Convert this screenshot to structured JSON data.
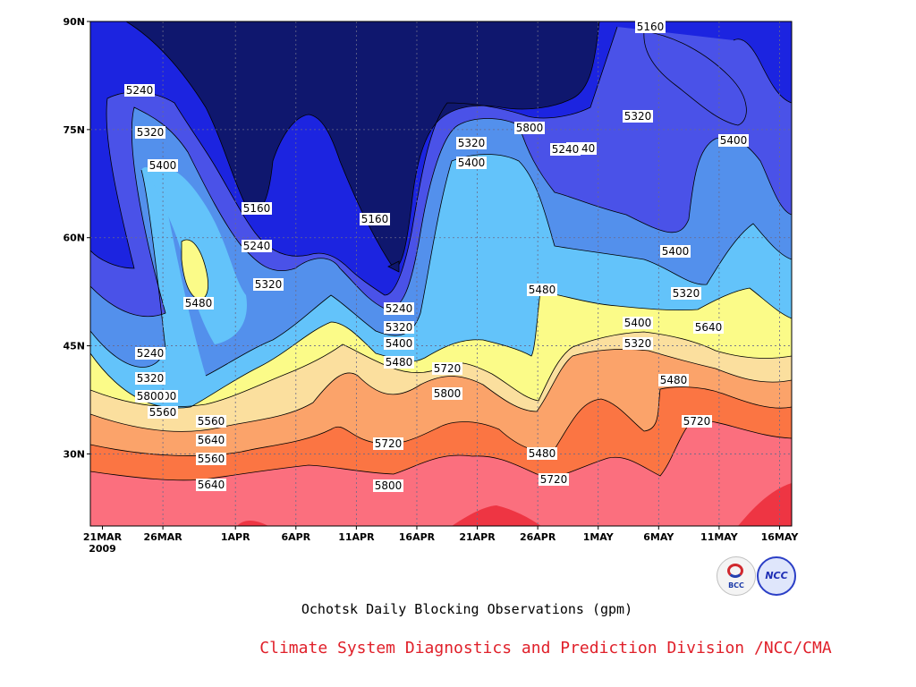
{
  "chart_data": {
    "type": "heatmap",
    "subtype": "filled-contour",
    "title": "Ochotsk Daily Blocking Observations (gpm)",
    "xlabel": "",
    "ylabel": "",
    "x_ticks": [
      "21MAR\n2009",
      "26MAR",
      "1APR",
      "6APR",
      "11APR",
      "16APR",
      "21APR",
      "26APR",
      "1MAY",
      "6MAY",
      "11MAY",
      "16MAY"
    ],
    "y_ticks": [
      "90N",
      "75N",
      "60N",
      "45N",
      "30N"
    ],
    "ylim_deg_north": [
      20,
      90
    ],
    "xlim": [
      "2009-03-20",
      "2009-05-17"
    ],
    "grid": true,
    "contour_levels": [
      5160,
      5240,
      5320,
      5400,
      5480,
      5560,
      5640,
      5720,
      5800
    ],
    "colors": {
      "below_5160": "#0f176e",
      "5160_5240": "#1c24e0",
      "5240_5320": "#4a52e8",
      "5320_5400": "#5390ec",
      "5400_5480": "#63c3fa",
      "5480_5560": "#fbfb88",
      "5560_5640": "#fbdf9e",
      "5640_5720": "#fba36a",
      "5720_5800": "#fb7543",
      "5800_5880": "#fb6f7e",
      "above_5880": "#ee3543"
    },
    "contour_labels": [
      "5240",
      "5320",
      "5400",
      "5160",
      "5240",
      "5320",
      "5480",
      "5160",
      "5160",
      "5240",
      "5320",
      "5240",
      "5320",
      "5400",
      "5480",
      "5240",
      "5320",
      "5400",
      "5480",
      "5320",
      "5400",
      "5560",
      "5640",
      "5560",
      "5640",
      "5720",
      "5800",
      "5720",
      "5800",
      "5480",
      "5720",
      "5800",
      "5240",
      "5400",
      "5320",
      "5400",
      "5320",
      "5400",
      "5560",
      "5640",
      "5480",
      "5720",
      "5800"
    ]
  },
  "footer": {
    "title": "Ochotsk Daily Blocking Observations (gpm)",
    "credit": "Climate System Diagnostics and Prediction Division /NCC/CMA",
    "logo_left": "BCC",
    "logo_right": "NCC"
  }
}
